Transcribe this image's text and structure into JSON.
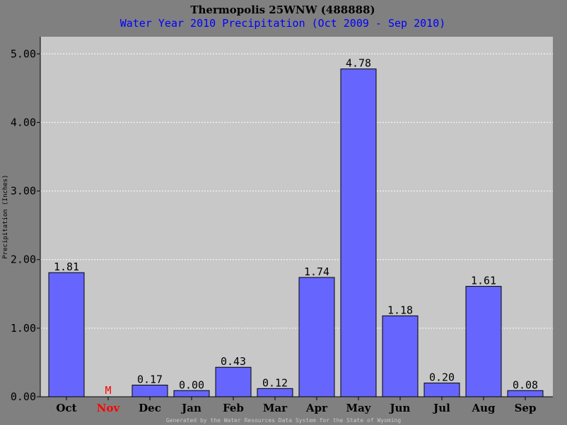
{
  "colors": {
    "page_background": "#808080",
    "plot_background": "#c8c8c8",
    "bar_fill": "#6666ff",
    "bar_stroke": "#000000",
    "missing_text": "#ff0000",
    "subtitle_text": "#0000ff",
    "footer_text": "#c8c8c8"
  },
  "chart_data": {
    "type": "bar",
    "title": "Thermopolis 25WNW (488888)",
    "subtitle": "Water Year 2010 Precipitation (Oct 2009 - Sep 2010)",
    "ylabel": "Precipitation (Inches)",
    "xlabel": "",
    "ylim": [
      0,
      5.25
    ],
    "yticks": [
      "0.00",
      "1.00",
      "2.00",
      "3.00",
      "4.00",
      "5.00"
    ],
    "grid": true,
    "categories": [
      "Oct",
      "Nov",
      "Dec",
      "Jan",
      "Feb",
      "Mar",
      "Apr",
      "May",
      "Jun",
      "Jul",
      "Aug",
      "Sep"
    ],
    "values": [
      1.81,
      null,
      0.17,
      0.0,
      0.43,
      0.12,
      1.74,
      4.78,
      1.18,
      0.2,
      1.61,
      0.08
    ],
    "labels": [
      "1.81",
      "M",
      "0.17",
      "0.00",
      "0.43",
      "0.12",
      "1.74",
      "4.78",
      "1.18",
      "0.20",
      "1.61",
      "0.08"
    ],
    "missing": [
      false,
      true,
      false,
      false,
      false,
      false,
      false,
      false,
      false,
      false,
      false,
      false
    ],
    "footer": "Generated by the Water Resources Data System for the State of Wyoming"
  }
}
